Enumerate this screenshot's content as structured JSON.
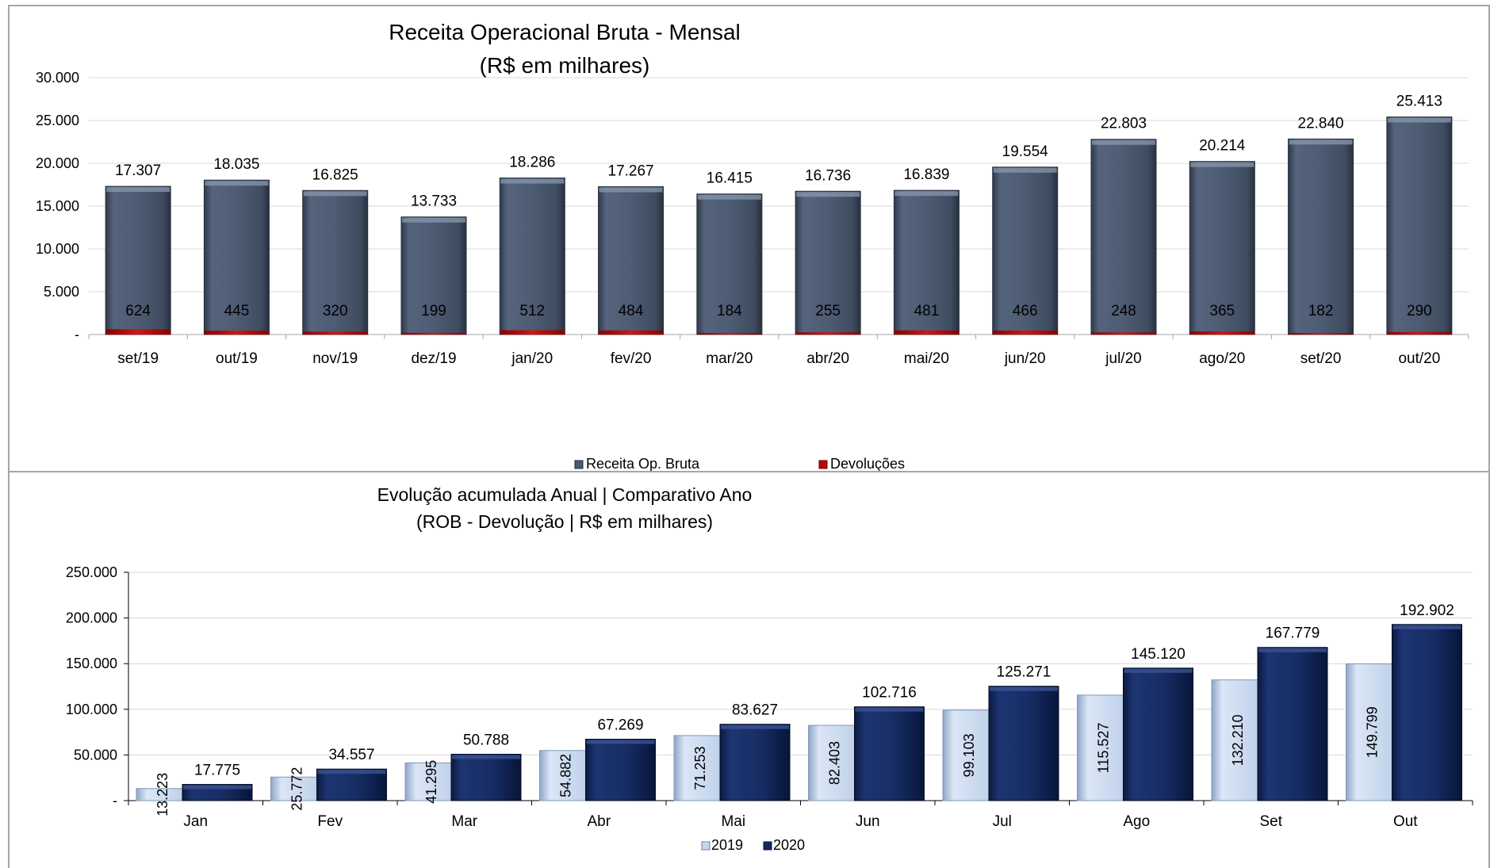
{
  "chart_data": [
    {
      "type": "bar",
      "title": "Receita Operacional Bruta - Mensal",
      "subtitle": "(R$ em milhares)",
      "categories": [
        "set/19",
        "out/19",
        "nov/19",
        "dez/19",
        "jan/20",
        "fev/20",
        "mar/20",
        "abr/20",
        "mai/20",
        "jun/20",
        "jul/20",
        "ago/20",
        "set/20",
        "out/20"
      ],
      "series": [
        {
          "name": "Receita Op. Bruta",
          "values": [
            17307,
            18035,
            16825,
            13733,
            18286,
            17267,
            16415,
            16736,
            16839,
            19554,
            22803,
            20214,
            22840,
            25413
          ],
          "labels": [
            "17.307",
            "18.035",
            "16.825",
            "13.733",
            "18.286",
            "17.267",
            "16.415",
            "16.736",
            "16.839",
            "19.554",
            "22.803",
            "20.214",
            "22.840",
            "25.413"
          ],
          "color": "#4a5a70"
        },
        {
          "name": "Devoluções",
          "values": [
            624,
            445,
            320,
            199,
            512,
            484,
            184,
            255,
            481,
            466,
            248,
            365,
            182,
            290
          ],
          "labels": [
            "624",
            "445",
            "320",
            "199",
            "512",
            "484",
            "184",
            "255",
            "481",
            "466",
            "248",
            "365",
            "182",
            "290"
          ],
          "color": "#c00000"
        }
      ],
      "ylim": [
        0,
        30000
      ],
      "yticks": [
        0,
        5000,
        10000,
        15000,
        20000,
        25000,
        30000
      ],
      "ytick_labels": [
        "-",
        "5.000",
        "10.000",
        "15.000",
        "20.000",
        "25.000",
        "30.000"
      ],
      "grid": true,
      "legend": "bottom"
    },
    {
      "type": "bar",
      "title": "Evolução acumulada Anual | Comparativo Ano",
      "subtitle": "(ROB - Devolução | R$ em milhares)",
      "categories": [
        "Jan",
        "Fev",
        "Mar",
        "Abr",
        "Mai",
        "Jun",
        "Jul",
        "Ago",
        "Set",
        "Out"
      ],
      "series": [
        {
          "name": "2019",
          "values": [
            13223,
            25772,
            41295,
            54882,
            71253,
            82403,
            99103,
            115527,
            132210,
            149799
          ],
          "labels": [
            "13.223",
            "25.772",
            "41.295",
            "54.882",
            "71.253",
            "82.403",
            "99.103",
            "115.527",
            "132.210",
            "149.799"
          ],
          "color": "#c5d6ee"
        },
        {
          "name": "2020",
          "values": [
            17775,
            34557,
            50788,
            67269,
            83627,
            102716,
            125271,
            145120,
            167779,
            192902
          ],
          "labels": [
            "17.775",
            "34.557",
            "50.788",
            "67.269",
            "83.627",
            "102.716",
            "125.271",
            "145.120",
            "167.779",
            "192.902"
          ],
          "color": "#14285c"
        }
      ],
      "ylim": [
        0,
        250000
      ],
      "yticks": [
        0,
        50000,
        100000,
        150000,
        200000,
        250000
      ],
      "ytick_labels": [
        "-",
        "50.000",
        "100.000",
        "150.000",
        "200.000",
        "250.000"
      ],
      "grid": true,
      "legend": "bottom"
    }
  ]
}
